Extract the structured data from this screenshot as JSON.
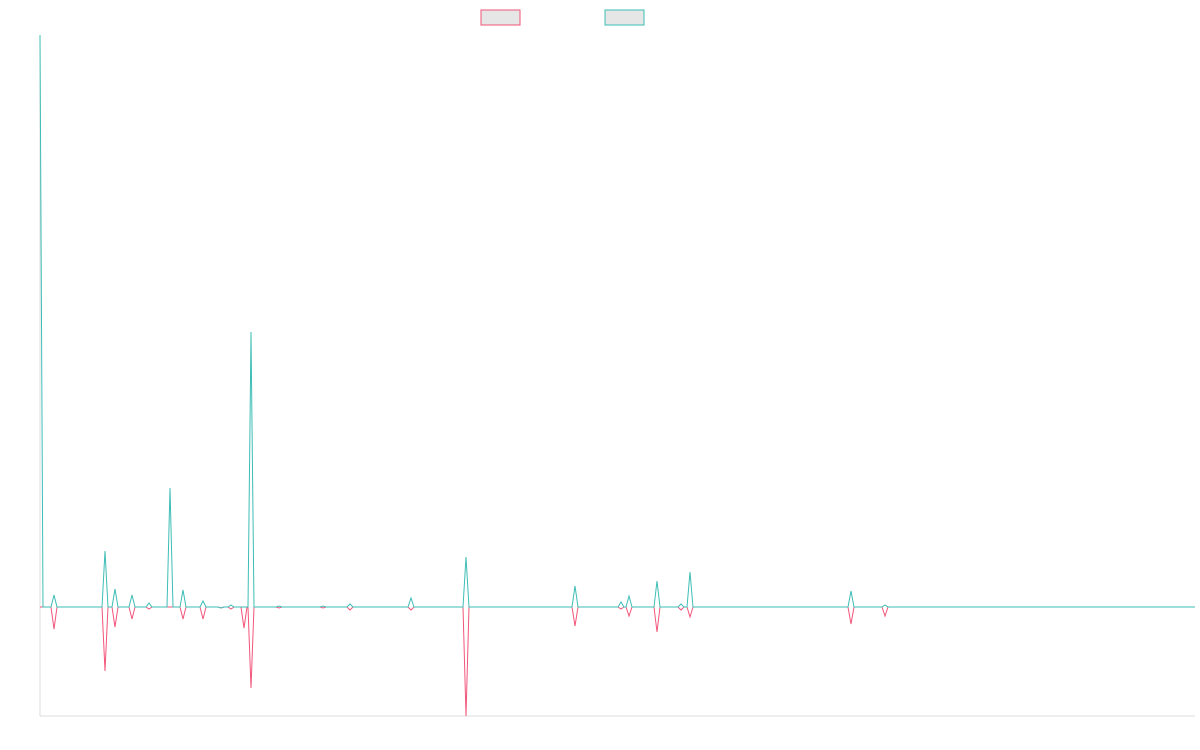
{
  "chart_data": {
    "type": "line",
    "x": [
      0,
      3,
      11,
      14,
      17,
      62,
      65,
      68,
      72,
      75,
      78,
      89,
      92,
      95,
      106,
      109,
      112,
      127,
      130,
      133,
      140,
      143,
      146,
      160,
      163,
      166,
      178,
      181,
      184,
      188,
      191,
      194,
      201,
      204,
      207,
      208,
      211,
      214,
      236,
      239,
      242,
      280,
      283,
      286,
      307,
      310,
      313,
      368,
      371,
      374,
      423,
      426,
      429,
      532,
      535,
      538,
      578,
      581,
      584,
      586,
      589,
      592,
      614,
      617,
      620,
      638,
      641,
      644,
      647,
      650,
      653,
      808,
      811,
      814,
      842,
      845,
      848,
      1155
    ],
    "series": [
      {
        "color": "#f2557a",
        "values": [
          0,
          0,
          0,
          -22,
          0,
          0,
          -64,
          0,
          0,
          -20,
          0,
          0,
          -12,
          0,
          0,
          -2,
          0,
          0,
          0,
          0,
          0,
          -12,
          0,
          0,
          -12,
          0,
          0,
          -1,
          0,
          0,
          -2,
          0,
          0,
          -21,
          0,
          0,
          -81,
          0,
          0,
          -1,
          0,
          0,
          -1,
          0,
          0,
          -3,
          0,
          0,
          -3,
          0,
          0,
          -109,
          0,
          0,
          -19,
          0,
          0,
          -2,
          0,
          0,
          -9,
          0,
          0,
          -25,
          0,
          0,
          -3,
          0,
          0,
          -10,
          0,
          0,
          -17,
          0,
          0,
          -9,
          0,
          0
        ]
      },
      {
        "color": "#3dbdb5",
        "values": [
          572,
          0,
          0,
          12,
          0,
          0,
          56,
          0,
          0,
          18,
          0,
          0,
          12,
          0,
          0,
          4,
          0,
          0,
          119,
          0,
          0,
          17,
          0,
          0,
          6,
          0,
          0,
          -1,
          0,
          0,
          2,
          0,
          0,
          0,
          0,
          0,
          275,
          0,
          0,
          1,
          0,
          0,
          1,
          0,
          0,
          3,
          0,
          0,
          9,
          0,
          0,
          50,
          0,
          0,
          21,
          0,
          0,
          5,
          0,
          0,
          11,
          0,
          0,
          26,
          0,
          0,
          3,
          0,
          0,
          35,
          0,
          0,
          16,
          0,
          0,
          2,
          0,
          0
        ]
      }
    ],
    "xlim": [
      0,
      1155
    ],
    "ylim": [
      -109,
      572
    ]
  }
}
